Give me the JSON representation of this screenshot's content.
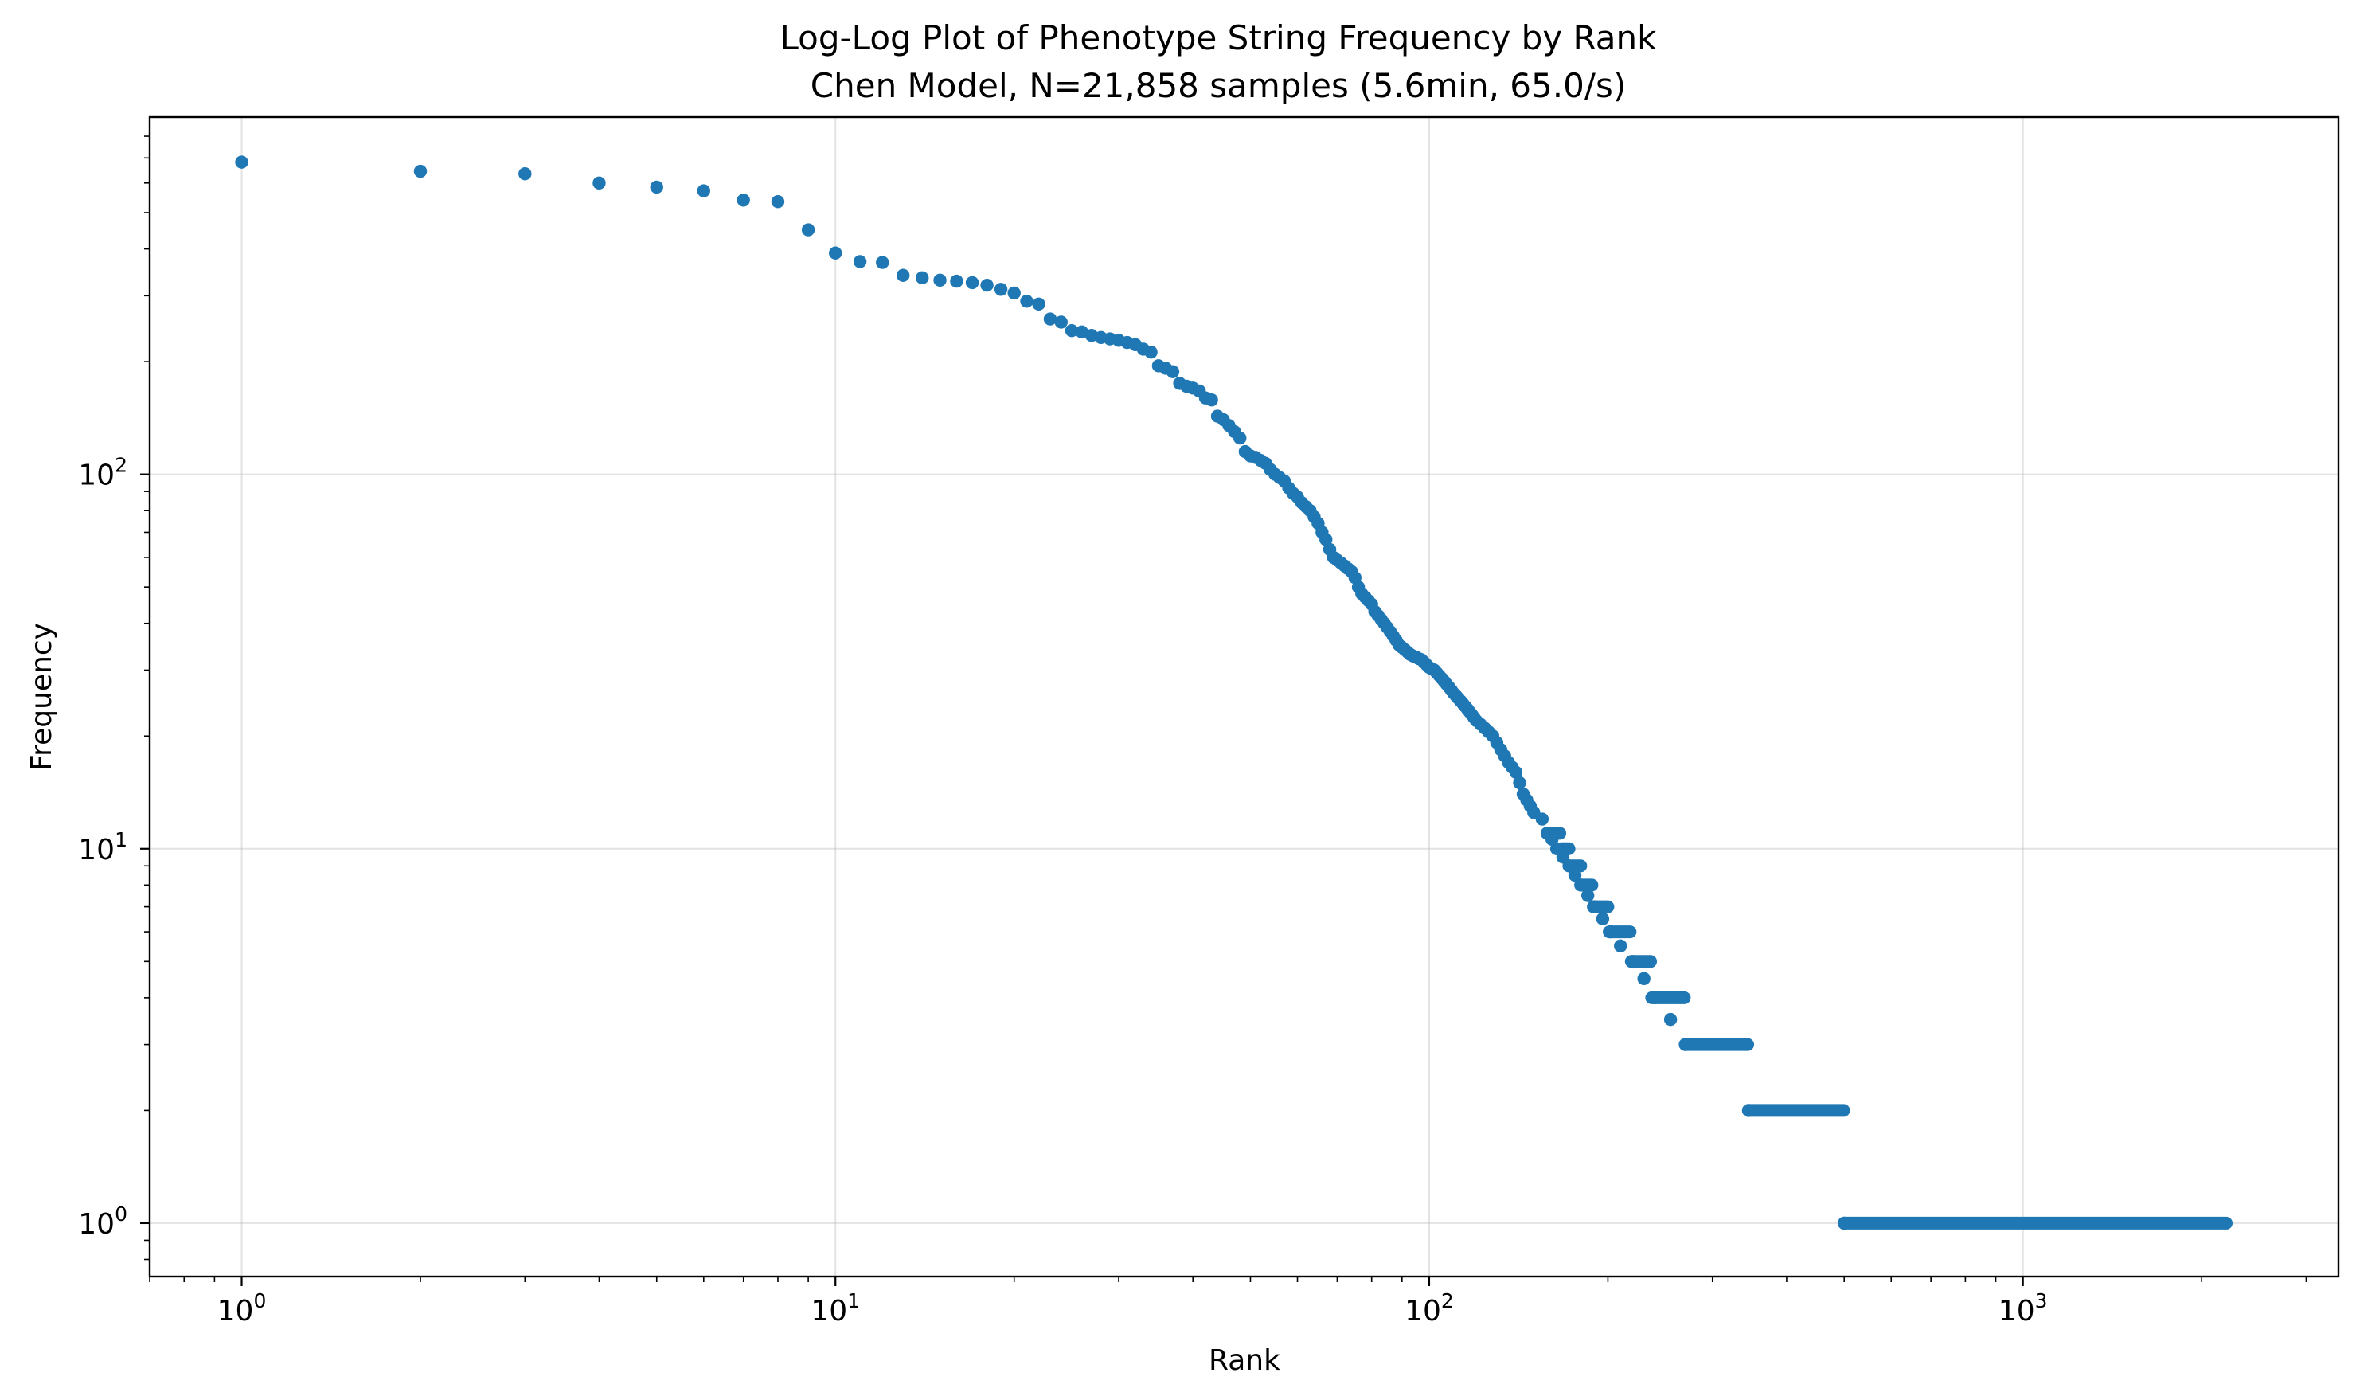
{
  "chart_data": {
    "type": "scatter",
    "title": "Log-Log Plot of Phenotype String Frequency by Rank",
    "subtitle": "Chen Model, N=21,858 samples (5.6min, 65.0/s)",
    "xlabel": "Rank",
    "ylabel": "Frequency",
    "xscale": "log",
    "yscale": "log",
    "xlim": [
      0.7,
      3400
    ],
    "ylim": [
      0.72,
      900
    ],
    "grid": true,
    "marker_color": "#1f77b4",
    "x_ticks": [
      {
        "value": 1,
        "base": "10",
        "exp": "0"
      },
      {
        "value": 10,
        "base": "10",
        "exp": "1"
      },
      {
        "value": 100,
        "base": "10",
        "exp": "2"
      },
      {
        "value": 1000,
        "base": "10",
        "exp": "3"
      }
    ],
    "y_ticks": [
      {
        "value": 1,
        "base": "10",
        "exp": "0"
      },
      {
        "value": 10,
        "base": "10",
        "exp": "1"
      },
      {
        "value": 100,
        "base": "10",
        "exp": "2"
      }
    ],
    "points": [
      [
        1,
        682
      ],
      [
        2,
        645
      ],
      [
        3,
        635
      ],
      [
        4,
        600
      ],
      [
        5,
        585
      ],
      [
        6,
        572
      ],
      [
        7,
        540
      ],
      [
        8,
        535
      ],
      [
        9,
        450
      ],
      [
        10,
        390
      ],
      [
        11,
        370
      ],
      [
        12,
        368
      ],
      [
        13,
        340
      ],
      [
        14,
        335
      ],
      [
        15,
        330
      ],
      [
        16,
        328
      ],
      [
        17,
        325
      ],
      [
        18,
        320
      ],
      [
        19,
        312
      ],
      [
        20,
        305
      ],
      [
        21,
        290
      ],
      [
        22,
        285
      ],
      [
        23,
        260
      ],
      [
        24,
        255
      ],
      [
        25,
        242
      ],
      [
        26,
        240
      ],
      [
        27,
        235
      ],
      [
        28,
        232
      ],
      [
        29,
        230
      ],
      [
        30,
        228
      ],
      [
        31,
        225
      ],
      [
        32,
        222
      ],
      [
        33,
        216
      ],
      [
        34,
        212
      ],
      [
        35,
        195
      ],
      [
        36,
        192
      ],
      [
        37,
        188
      ],
      [
        38,
        175
      ],
      [
        39,
        172
      ],
      [
        40,
        170
      ],
      [
        41,
        167
      ],
      [
        42,
        160
      ],
      [
        43,
        158
      ],
      [
        44,
        143
      ],
      [
        45,
        140
      ],
      [
        46,
        135
      ],
      [
        47,
        130
      ],
      [
        48,
        125
      ],
      [
        49,
        115
      ],
      [
        50,
        112
      ],
      [
        51,
        111
      ],
      [
        52,
        109
      ],
      [
        53,
        107
      ],
      [
        54,
        103
      ],
      [
        55,
        100
      ],
      [
        56,
        98
      ],
      [
        57,
        96
      ],
      [
        58,
        92
      ],
      [
        59,
        89
      ],
      [
        60,
        87
      ],
      [
        61,
        84
      ],
      [
        62,
        82
      ],
      [
        63,
        80
      ],
      [
        64,
        77
      ],
      [
        65,
        74
      ],
      [
        66,
        70
      ],
      [
        67,
        67
      ],
      [
        68,
        63
      ],
      [
        69,
        60
      ],
      [
        70,
        59
      ],
      [
        71,
        58
      ],
      [
        72,
        57
      ],
      [
        73,
        56
      ],
      [
        74,
        55
      ],
      [
        75,
        53
      ],
      [
        76,
        50
      ],
      [
        77,
        48
      ],
      [
        78,
        47
      ],
      [
        79,
        46
      ],
      [
        80,
        45
      ],
      [
        81,
        43
      ],
      [
        82,
        42
      ],
      [
        83,
        41
      ],
      [
        84,
        40
      ],
      [
        85,
        39
      ],
      [
        86,
        38
      ],
      [
        87,
        37
      ],
      [
        88,
        36
      ],
      [
        89,
        35
      ],
      [
        90,
        34.5
      ],
      [
        91,
        34
      ],
      [
        92,
        33.5
      ],
      [
        93,
        33
      ],
      [
        94,
        32.7
      ],
      [
        95,
        32.5
      ],
      [
        96,
        32.2
      ],
      [
        97,
        32
      ],
      [
        98,
        31.5
      ],
      [
        99,
        31
      ],
      [
        100,
        30.5
      ],
      [
        101,
        30.2
      ],
      [
        102,
        30
      ],
      [
        103,
        29.5
      ],
      [
        104,
        29
      ],
      [
        105,
        28.5
      ],
      [
        106,
        28
      ],
      [
        107,
        27.5
      ],
      [
        108,
        27
      ],
      [
        109,
        26.5
      ],
      [
        110,
        26
      ],
      [
        111,
        25.6
      ],
      [
        112,
        25.2
      ],
      [
        113,
        24.8
      ],
      [
        114,
        24.4
      ],
      [
        115,
        24
      ],
      [
        116,
        23.6
      ],
      [
        117,
        23.2
      ],
      [
        118,
        22.8
      ],
      [
        119,
        22.4
      ],
      [
        120,
        22
      ],
      [
        122,
        21.5
      ],
      [
        124,
        21
      ],
      [
        126,
        20.5
      ],
      [
        128,
        20
      ],
      [
        130,
        19.2
      ],
      [
        132,
        18.4
      ],
      [
        134,
        17.7
      ],
      [
        136,
        17
      ],
      [
        138,
        16.5
      ],
      [
        140,
        16
      ],
      [
        142,
        15
      ],
      [
        144,
        14
      ],
      [
        146,
        13.5
      ],
      [
        148,
        13
      ],
      [
        150,
        12.5
      ],
      [
        155,
        12
      ],
      [
        158,
        11
      ],
      [
        161,
        10.6
      ],
      [
        164,
        10
      ],
      [
        168,
        9.5
      ],
      [
        172,
        9
      ],
      [
        176,
        8.5
      ],
      [
        180,
        8
      ],
      [
        185,
        7.5
      ],
      [
        190,
        7
      ],
      [
        196,
        6.5
      ],
      [
        202,
        6
      ],
      [
        210,
        5.5
      ],
      [
        220,
        5
      ],
      [
        230,
        4.5
      ],
      [
        240,
        4
      ],
      [
        255,
        3.5
      ],
      [
        270,
        3
      ],
      [
        345,
        2
      ],
      [
        500,
        1
      ]
    ],
    "plateaus": [
      {
        "y": 11,
        "x_start": 158,
        "x_end": 166
      },
      {
        "y": 10,
        "x_start": 167,
        "x_end": 172
      },
      {
        "y": 9,
        "x_start": 173,
        "x_end": 180
      },
      {
        "y": 8,
        "x_start": 181,
        "x_end": 188
      },
      {
        "y": 7,
        "x_start": 189,
        "x_end": 200
      },
      {
        "y": 6,
        "x_start": 201,
        "x_end": 218
      },
      {
        "y": 5,
        "x_start": 219,
        "x_end": 236
      },
      {
        "y": 4,
        "x_start": 237,
        "x_end": 269
      },
      {
        "y": 3,
        "x_start": 270,
        "x_end": 344
      },
      {
        "y": 2,
        "x_start": 345,
        "x_end": 499
      },
      {
        "y": 1,
        "x_start": 500,
        "x_end": 2200
      }
    ]
  }
}
